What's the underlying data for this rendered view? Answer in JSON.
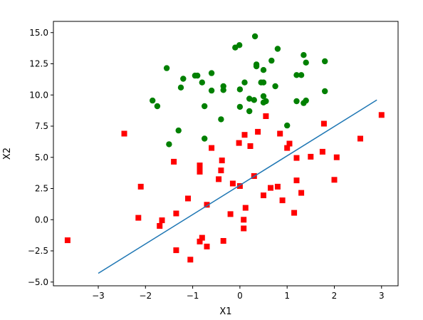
{
  "chart_data": {
    "type": "scatter",
    "title": "",
    "xlabel": "X1",
    "ylabel": "X2",
    "xlim": [
      -3.95,
      3.35
    ],
    "ylim": [
      -5.3,
      15.9
    ],
    "xticks": [
      -3,
      -2,
      -1,
      0,
      1,
      2,
      3
    ],
    "yticks": [
      -5.0,
      -2.5,
      0.0,
      2.5,
      5.0,
      7.5,
      10.0,
      12.5,
      15.0
    ],
    "xtick_labels": [
      "−3",
      "−2",
      "−1",
      "0",
      "1",
      "2",
      "3"
    ],
    "ytick_labels": [
      "−5.0",
      "−2.5",
      "0.0",
      "2.5",
      "5.0",
      "7.5",
      "10.0",
      "12.5",
      "15.0"
    ],
    "grid": false,
    "legend": "none",
    "series": [
      {
        "marker": "circle",
        "color": "#008000",
        "points": [
          [
            0.32,
            14.7
          ],
          [
            -0.01,
            14.0
          ],
          [
            -0.1,
            13.8
          ],
          [
            0.8,
            13.7
          ],
          [
            1.35,
            13.2
          ],
          [
            0.67,
            12.75
          ],
          [
            1.8,
            12.7
          ],
          [
            1.4,
            12.6
          ],
          [
            0.35,
            12.45
          ],
          [
            -1.55,
            12.15
          ],
          [
            0.35,
            12.3
          ],
          [
            0.5,
            12.0
          ],
          [
            -0.6,
            11.75
          ],
          [
            -0.95,
            11.55
          ],
          [
            -0.9,
            11.55
          ],
          [
            -1.2,
            11.3
          ],
          [
            1.2,
            11.6
          ],
          [
            1.3,
            11.6
          ],
          [
            -0.8,
            11.0
          ],
          [
            0.1,
            11.0
          ],
          [
            0.45,
            11.0
          ],
          [
            0.5,
            11.0
          ],
          [
            0.75,
            10.7
          ],
          [
            -0.35,
            10.7
          ],
          [
            -1.25,
            10.6
          ],
          [
            -0.6,
            10.35
          ],
          [
            -0.35,
            10.4
          ],
          [
            0.0,
            10.45
          ],
          [
            1.8,
            10.3
          ],
          [
            0.5,
            9.9
          ],
          [
            0.2,
            9.7
          ],
          [
            0.3,
            9.6
          ],
          [
            0.5,
            9.4
          ],
          [
            0.55,
            9.5
          ],
          [
            1.2,
            9.5
          ],
          [
            1.4,
            9.55
          ],
          [
            1.35,
            9.35
          ],
          [
            -1.85,
            9.55
          ],
          [
            -1.75,
            9.1
          ],
          [
            -0.75,
            9.1
          ],
          [
            0.0,
            9.05
          ],
          [
            0.2,
            8.7
          ],
          [
            -0.4,
            8.05
          ],
          [
            1.0,
            7.55
          ],
          [
            -1.3,
            7.15
          ],
          [
            -0.75,
            6.5
          ],
          [
            -1.5,
            6.05
          ]
        ]
      },
      {
        "marker": "square",
        "color": "#ff0000",
        "points": [
          [
            3.0,
            8.4
          ],
          [
            0.55,
            8.3
          ],
          [
            1.78,
            7.7
          ],
          [
            -2.45,
            6.9
          ],
          [
            0.38,
            7.05
          ],
          [
            0.85,
            6.9
          ],
          [
            0.1,
            6.8
          ],
          [
            2.55,
            6.5
          ],
          [
            1.05,
            6.1
          ],
          [
            -0.02,
            6.15
          ],
          [
            0.22,
            5.9
          ],
          [
            -0.6,
            5.75
          ],
          [
            1.0,
            5.75
          ],
          [
            1.75,
            5.45
          ],
          [
            1.5,
            5.05
          ],
          [
            2.05,
            5.0
          ],
          [
            1.2,
            4.95
          ],
          [
            -0.38,
            4.75
          ],
          [
            -1.4,
            4.65
          ],
          [
            -0.85,
            4.35
          ],
          [
            -0.85,
            4.1
          ],
          [
            -0.85,
            3.85
          ],
          [
            -0.4,
            3.95
          ],
          [
            0.3,
            3.5
          ],
          [
            -0.45,
            3.25
          ],
          [
            1.2,
            3.15
          ],
          [
            2.0,
            3.2
          ],
          [
            -0.15,
            2.9
          ],
          [
            0.0,
            2.7
          ],
          [
            -2.1,
            2.65
          ],
          [
            0.65,
            2.55
          ],
          [
            0.8,
            2.65
          ],
          [
            1.3,
            2.15
          ],
          [
            0.5,
            1.95
          ],
          [
            -1.1,
            1.7
          ],
          [
            0.9,
            1.55
          ],
          [
            -0.7,
            1.2
          ],
          [
            0.12,
            0.95
          ],
          [
            1.15,
            0.55
          ],
          [
            -1.35,
            0.5
          ],
          [
            -0.2,
            0.45
          ],
          [
            -2.15,
            0.15
          ],
          [
            -1.65,
            -0.05
          ],
          [
            0.08,
            0.0
          ],
          [
            -1.7,
            -0.5
          ],
          [
            0.08,
            -0.7
          ],
          [
            -0.35,
            -1.7
          ],
          [
            -0.8,
            -1.45
          ],
          [
            -3.65,
            -1.65
          ],
          [
            -0.85,
            -1.75
          ],
          [
            -0.7,
            -2.15
          ],
          [
            -1.35,
            -2.45
          ],
          [
            -1.05,
            -3.2
          ]
        ]
      },
      {
        "type": "line",
        "color": "#1f77b4",
        "x": [
          -3.0,
          2.9
        ],
        "y": [
          -4.3,
          9.6
        ]
      }
    ]
  }
}
